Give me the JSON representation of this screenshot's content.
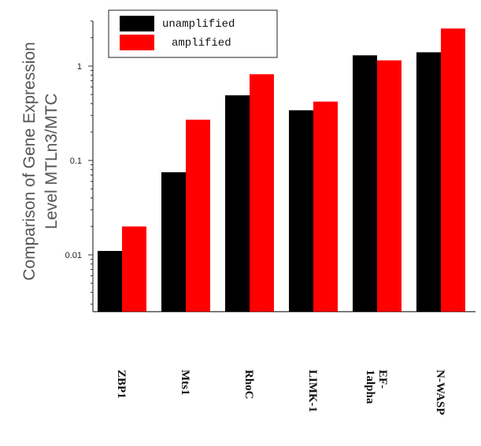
{
  "chart_data": {
    "type": "bar",
    "categories": [
      [
        "ZBP1"
      ],
      [
        "Mts1"
      ],
      [
        "RhoC"
      ],
      [
        "LIMK-1"
      ],
      [
        "EF-",
        "1alpha"
      ],
      [
        "N-WASP"
      ]
    ],
    "series": [
      {
        "name": "unamplified",
        "color": "#000000",
        "values": [
          0.011,
          0.075,
          0.49,
          0.34,
          1.3,
          1.4
        ]
      },
      {
        "name": "amplified",
        "color": "#ff0000",
        "values": [
          0.02,
          0.27,
          0.82,
          0.42,
          1.15,
          2.5
        ]
      }
    ],
    "ylabel": [
      "Comparison of Gene Expression",
      "Level  MTLn3/MTC"
    ],
    "yscale": "log",
    "ylim": [
      0.0025,
      3
    ],
    "yticks": [
      {
        "value": 0.01,
        "label": "0.01"
      },
      {
        "value": 0.1,
        "label": "0.1"
      },
      {
        "value": 1,
        "label": "1"
      }
    ],
    "legend": "top-left",
    "grid": false
  }
}
